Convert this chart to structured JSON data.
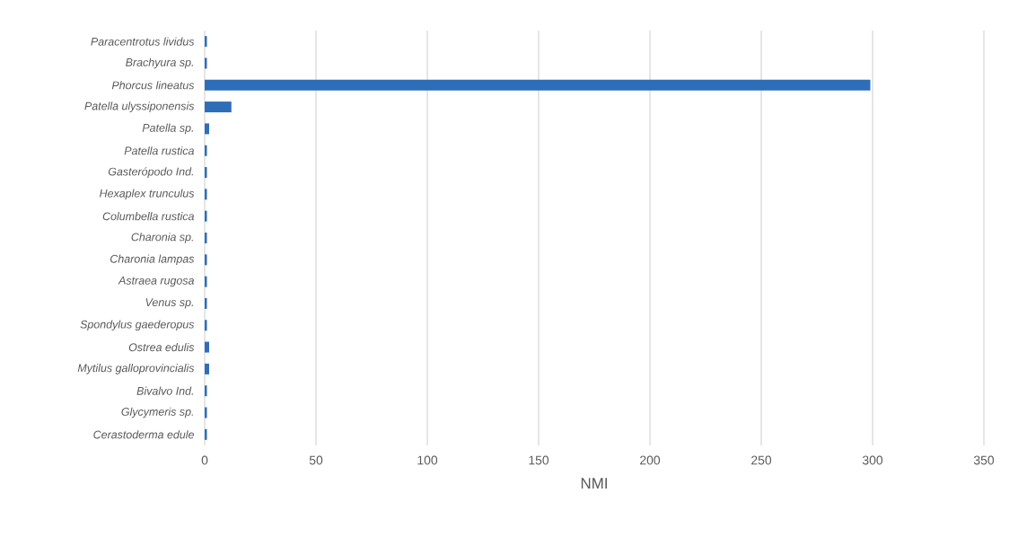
{
  "chart_data": {
    "type": "bar",
    "orientation": "horizontal",
    "xlabel": "NMI",
    "categories": [
      "Paracentrotus lividus",
      "Brachyura sp.",
      "Phorcus lineatus",
      "Patella ulyssiponensis",
      "Patella sp.",
      "Patella rustica",
      "Gasterópodo Ind.",
      "Hexaplex trunculus",
      "Columbella rustica",
      "Charonia sp.",
      "Charonia lampas",
      "Astraea rugosa",
      "Venus sp.",
      "Spondylus gaederopus",
      "Ostrea edulis",
      "Mytilus galloprovincialis",
      "Bivalvo Ind.",
      "Glycymeris sp.",
      "Cerastoderma edule"
    ],
    "values": [
      1,
      1,
      299,
      12,
      2,
      1,
      1,
      1,
      1,
      1,
      1,
      1,
      1,
      1,
      2,
      2,
      1,
      1,
      1
    ],
    "color": "#2e6eb8",
    "xlim": [
      0,
      350
    ],
    "xticks": [
      0,
      50,
      100,
      150,
      200,
      250,
      300,
      350
    ],
    "grid": "x"
  }
}
